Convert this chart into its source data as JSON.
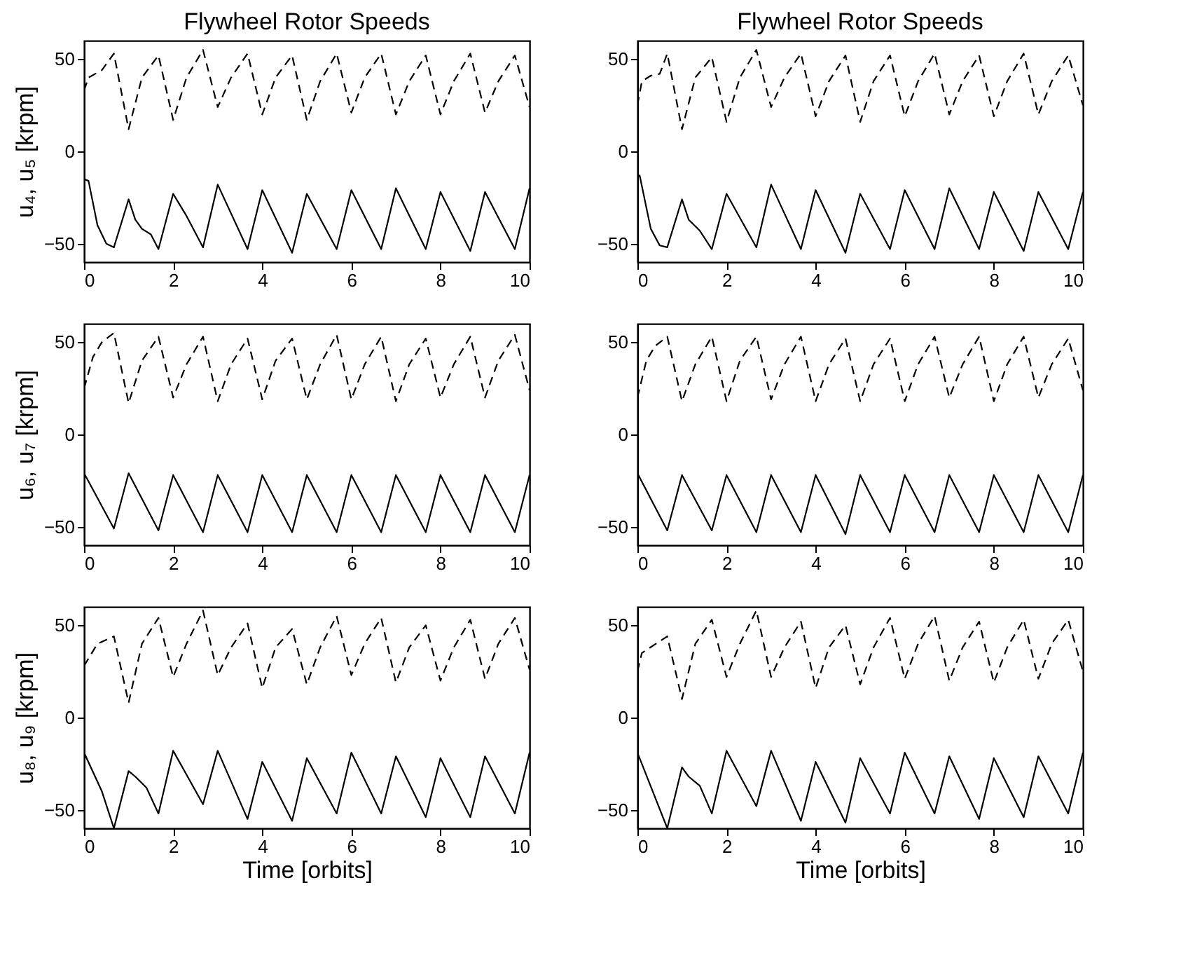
{
  "chart_data": [
    {
      "type": "line",
      "title": "Flywheel Rotor Speeds",
      "ylabel": "u₄, u₅ [krpm]",
      "xlim": [
        0,
        10
      ],
      "xticks": [
        0,
        2,
        4,
        6,
        8,
        10
      ],
      "ylim": [
        -60,
        60
      ],
      "yticks": [
        -50,
        0,
        50
      ],
      "grid": false,
      "series": [
        {
          "color": "#000000",
          "line_style": "solid",
          "x": [
            0,
            0.1,
            0.3,
            0.5,
            0.67,
            1,
            1.15,
            1.3,
            1.5,
            1.67,
            2,
            2.3,
            2.67,
            3,
            3.67,
            4,
            4.67,
            5,
            5.67,
            6,
            6.67,
            7,
            7.67,
            8,
            8.67,
            9,
            9.67,
            10
          ],
          "values": [
            -15,
            -16,
            -40,
            -50,
            -52,
            -26,
            -37,
            -42,
            -45,
            -53,
            -23,
            -35,
            -52,
            -18,
            -53,
            -21,
            -55,
            -23,
            -53,
            -21,
            -53,
            -20,
            -53,
            -22,
            -54,
            -22,
            -53,
            -20
          ]
        },
        {
          "color": "#000000",
          "line_style": "dashed",
          "x": [
            0,
            0.1,
            0.4,
            0.67,
            1,
            1.3,
            1.67,
            2,
            2.3,
            2.67,
            3,
            3.3,
            3.67,
            4,
            4.3,
            4.67,
            5,
            5.3,
            5.67,
            6,
            6.3,
            6.67,
            7,
            7.3,
            7.67,
            8,
            8.3,
            8.67,
            9,
            9.3,
            9.67,
            10
          ],
          "values": [
            33,
            40,
            44,
            53,
            12,
            40,
            52,
            17,
            40,
            55,
            24,
            40,
            53,
            20,
            40,
            52,
            17,
            38,
            53,
            21,
            40,
            53,
            20,
            38,
            52,
            20,
            38,
            53,
            21,
            38,
            52,
            24
          ]
        }
      ]
    },
    {
      "type": "line",
      "title": "Flywheel Rotor Speeds",
      "xlim": [
        0,
        10
      ],
      "xticks": [
        0,
        2,
        4,
        6,
        8,
        10
      ],
      "ylim": [
        -60,
        60
      ],
      "yticks": [
        -50,
        0,
        50
      ],
      "grid": false,
      "series": [
        {
          "color": "#000000",
          "line_style": "solid",
          "x": [
            0,
            0.05,
            0.3,
            0.5,
            0.67,
            1,
            1.15,
            1.4,
            1.67,
            2,
            2.67,
            3,
            3.67,
            4,
            4.67,
            5,
            5.67,
            6,
            6.67,
            7,
            7.67,
            8,
            8.67,
            9,
            9.67,
            10
          ],
          "values": [
            -14,
            -13,
            -42,
            -51,
            -52,
            -26,
            -37,
            -43,
            -53,
            -23,
            -52,
            -18,
            -53,
            -21,
            -55,
            -23,
            -53,
            -21,
            -53,
            -20,
            -53,
            -22,
            -54,
            -22,
            -53,
            -22
          ]
        },
        {
          "color": "#000000",
          "line_style": "dashed",
          "x": [
            0,
            0.1,
            0.3,
            0.5,
            0.67,
            1,
            1.3,
            1.67,
            2,
            2.3,
            2.67,
            3,
            3.3,
            3.67,
            4,
            4.3,
            4.67,
            5,
            5.3,
            5.67,
            6,
            6.3,
            6.67,
            7,
            7.3,
            7.67,
            8,
            8.3,
            8.67,
            9,
            9.3,
            9.67,
            10
          ],
          "values": [
            25,
            38,
            41,
            42,
            53,
            12,
            40,
            51,
            16,
            40,
            55,
            24,
            40,
            53,
            19,
            38,
            52,
            16,
            38,
            52,
            19,
            38,
            53,
            20,
            38,
            52,
            19,
            38,
            53,
            20,
            38,
            52,
            25
          ]
        }
      ]
    },
    {
      "type": "line",
      "ylabel": "u₆, u₇ [krpm]",
      "xlim": [
        0,
        10
      ],
      "xticks": [
        0,
        2,
        4,
        6,
        8,
        10
      ],
      "ylim": [
        -60,
        60
      ],
      "yticks": [
        -50,
        0,
        50
      ],
      "grid": false,
      "series": [
        {
          "color": "#000000",
          "line_style": "solid",
          "x": [
            0,
            0.67,
            1,
            1.67,
            2,
            2.67,
            3,
            3.67,
            4,
            4.67,
            5,
            5.67,
            6,
            6.67,
            7,
            7.67,
            8,
            8.67,
            9,
            9.67,
            10
          ],
          "values": [
            -21,
            -51,
            -21,
            -52,
            -22,
            -53,
            -22,
            -53,
            -22,
            -53,
            -22,
            -53,
            -22,
            -53,
            -22,
            -53,
            -22,
            -53,
            -22,
            -53,
            -22
          ]
        },
        {
          "color": "#000000",
          "line_style": "dashed",
          "x": [
            0,
            0.2,
            0.4,
            0.67,
            1,
            1.3,
            1.67,
            2,
            2.3,
            2.67,
            3,
            3.3,
            3.67,
            4,
            4.3,
            4.67,
            5,
            5.3,
            5.67,
            6,
            6.3,
            6.67,
            7,
            7.3,
            7.67,
            8,
            8.3,
            8.67,
            9,
            9.3,
            9.67,
            10
          ],
          "values": [
            25,
            42,
            50,
            55,
            17,
            40,
            53,
            20,
            38,
            53,
            18,
            38,
            52,
            19,
            40,
            52,
            19,
            38,
            54,
            19,
            38,
            53,
            18,
            38,
            52,
            20,
            38,
            53,
            20,
            40,
            54,
            24
          ]
        }
      ]
    },
    {
      "type": "line",
      "xlim": [
        0,
        10
      ],
      "xticks": [
        0,
        2,
        4,
        6,
        8,
        10
      ],
      "ylim": [
        -60,
        60
      ],
      "yticks": [
        -50,
        0,
        50
      ],
      "grid": false,
      "series": [
        {
          "color": "#000000",
          "line_style": "solid",
          "x": [
            0,
            0.67,
            1,
            1.67,
            2,
            2.67,
            3,
            3.67,
            4,
            4.67,
            5,
            5.67,
            6,
            6.67,
            7,
            7.67,
            8,
            8.67,
            9,
            9.67,
            10
          ],
          "values": [
            -21,
            -52,
            -22,
            -52,
            -22,
            -53,
            -22,
            -53,
            -22,
            -54,
            -22,
            -53,
            -22,
            -53,
            -22,
            -53,
            -22,
            -53,
            -22,
            -53,
            -22
          ]
        },
        {
          "color": "#000000",
          "line_style": "dashed",
          "x": [
            0,
            0.2,
            0.4,
            0.67,
            1,
            1.3,
            1.67,
            2,
            2.3,
            2.67,
            3,
            3.3,
            3.67,
            4,
            4.3,
            4.67,
            5,
            5.3,
            5.67,
            6,
            6.3,
            6.67,
            7,
            7.3,
            7.67,
            8,
            8.3,
            8.67,
            9,
            9.3,
            9.67,
            10
          ],
          "values": [
            20,
            40,
            48,
            53,
            18,
            38,
            53,
            18,
            40,
            53,
            19,
            38,
            53,
            18,
            38,
            52,
            18,
            38,
            52,
            18,
            38,
            53,
            20,
            38,
            53,
            18,
            38,
            53,
            20,
            38,
            52,
            24
          ]
        }
      ]
    },
    {
      "type": "line",
      "ylabel": "u₈, u₉ [krpm]",
      "xlabel": "Time [orbits]",
      "xlim": [
        0,
        10
      ],
      "xticks": [
        0,
        2,
        4,
        6,
        8,
        10
      ],
      "ylim": [
        -60,
        60
      ],
      "yticks": [
        -50,
        0,
        50
      ],
      "grid": false,
      "series": [
        {
          "color": "#000000",
          "line_style": "solid",
          "x": [
            0,
            0.4,
            0.67,
            1,
            1.15,
            1.4,
            1.67,
            2,
            2.67,
            3,
            3.67,
            4,
            4.67,
            5,
            5.67,
            6,
            6.67,
            7,
            7.67,
            8,
            8.67,
            9,
            9.67,
            10
          ],
          "values": [
            -19,
            -40,
            -60,
            -29,
            -32,
            -38,
            -52,
            -18,
            -47,
            -18,
            -55,
            -24,
            -56,
            -22,
            -52,
            -19,
            -52,
            -21,
            -54,
            -22,
            -54,
            -21,
            -52,
            -19
          ]
        },
        {
          "color": "#000000",
          "line_style": "dashed",
          "x": [
            0,
            0.3,
            0.67,
            1,
            1.3,
            1.67,
            2,
            2.3,
            2.67,
            3,
            3.3,
            3.67,
            4,
            4.3,
            4.67,
            5,
            5.3,
            5.67,
            6,
            6.3,
            6.67,
            7,
            7.3,
            7.67,
            8,
            8.3,
            8.67,
            9,
            9.3,
            9.67,
            10
          ],
          "values": [
            28,
            40,
            44,
            8,
            40,
            54,
            22,
            40,
            58,
            23,
            38,
            51,
            16,
            38,
            48,
            18,
            38,
            55,
            23,
            40,
            54,
            19,
            38,
            50,
            20,
            38,
            53,
            21,
            40,
            54,
            26
          ]
        }
      ]
    },
    {
      "type": "line",
      "xlabel": "Time [orbits]",
      "xlim": [
        0,
        10
      ],
      "xticks": [
        0,
        2,
        4,
        6,
        8,
        10
      ],
      "ylim": [
        -60,
        60
      ],
      "yticks": [
        -50,
        0,
        50
      ],
      "grid": false,
      "series": [
        {
          "color": "#000000",
          "line_style": "solid",
          "x": [
            0,
            0.67,
            1,
            1.15,
            1.4,
            1.67,
            2,
            2.67,
            3,
            3.67,
            4,
            4.67,
            5,
            5.67,
            6,
            6.67,
            7,
            7.67,
            8,
            8.67,
            9,
            9.67,
            10
          ],
          "values": [
            -19,
            -60,
            -27,
            -32,
            -37,
            -52,
            -18,
            -48,
            -18,
            -56,
            -24,
            -57,
            -22,
            -52,
            -19,
            -52,
            -21,
            -55,
            -22,
            -54,
            -21,
            -52,
            -19
          ]
        },
        {
          "color": "#000000",
          "line_style": "dashed",
          "x": [
            0,
            0.1,
            0.67,
            1,
            1.3,
            1.67,
            2,
            2.3,
            2.67,
            3,
            3.3,
            3.67,
            4,
            4.3,
            4.67,
            5,
            5.3,
            5.67,
            6,
            6.3,
            6.67,
            7,
            7.3,
            7.67,
            8,
            8.3,
            8.67,
            9,
            9.3,
            9.67,
            10
          ],
          "values": [
            25,
            35,
            44,
            10,
            40,
            53,
            22,
            40,
            58,
            22,
            38,
            52,
            16,
            38,
            50,
            18,
            38,
            54,
            21,
            40,
            55,
            20,
            38,
            52,
            19,
            38,
            53,
            21,
            40,
            53,
            25
          ]
        }
      ]
    }
  ]
}
